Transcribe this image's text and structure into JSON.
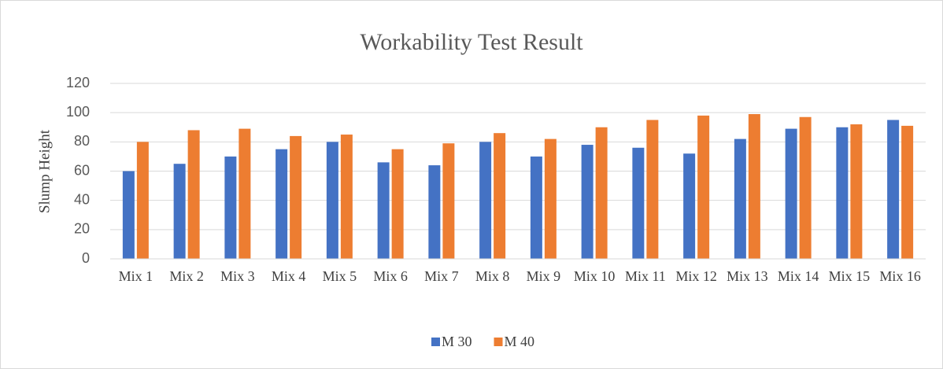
{
  "chart_data": {
    "type": "bar",
    "title": "Workability Test Result",
    "y_label": "Slump Height",
    "categories": [
      "Mix 1",
      "Mix 2",
      "Mix 3",
      "Mix 4",
      "Mix 5",
      "Mix 6",
      "Mix 7",
      "Mix 8",
      "Mix 9",
      "Mix 10",
      "Mix 11",
      "Mix 12",
      "Mix 13",
      "Mix 14",
      "Mix 15",
      "Mix 16"
    ],
    "series": [
      {
        "name": "M 30",
        "color": "#4472c4",
        "values": [
          60,
          65,
          70,
          75,
          80,
          66,
          64,
          80,
          70,
          78,
          76,
          72,
          82,
          89,
          90,
          95
        ]
      },
      {
        "name": "M 40",
        "color": "#ed7d31",
        "values": [
          80,
          88,
          89,
          84,
          85,
          75,
          79,
          86,
          82,
          90,
          95,
          98,
          99,
          97,
          92,
          91
        ]
      }
    ],
    "ylim": [
      0,
      120
    ],
    "yticks": [
      0,
      20,
      40,
      60,
      80,
      100,
      120
    ],
    "grid": true,
    "legend": "bottom"
  }
}
